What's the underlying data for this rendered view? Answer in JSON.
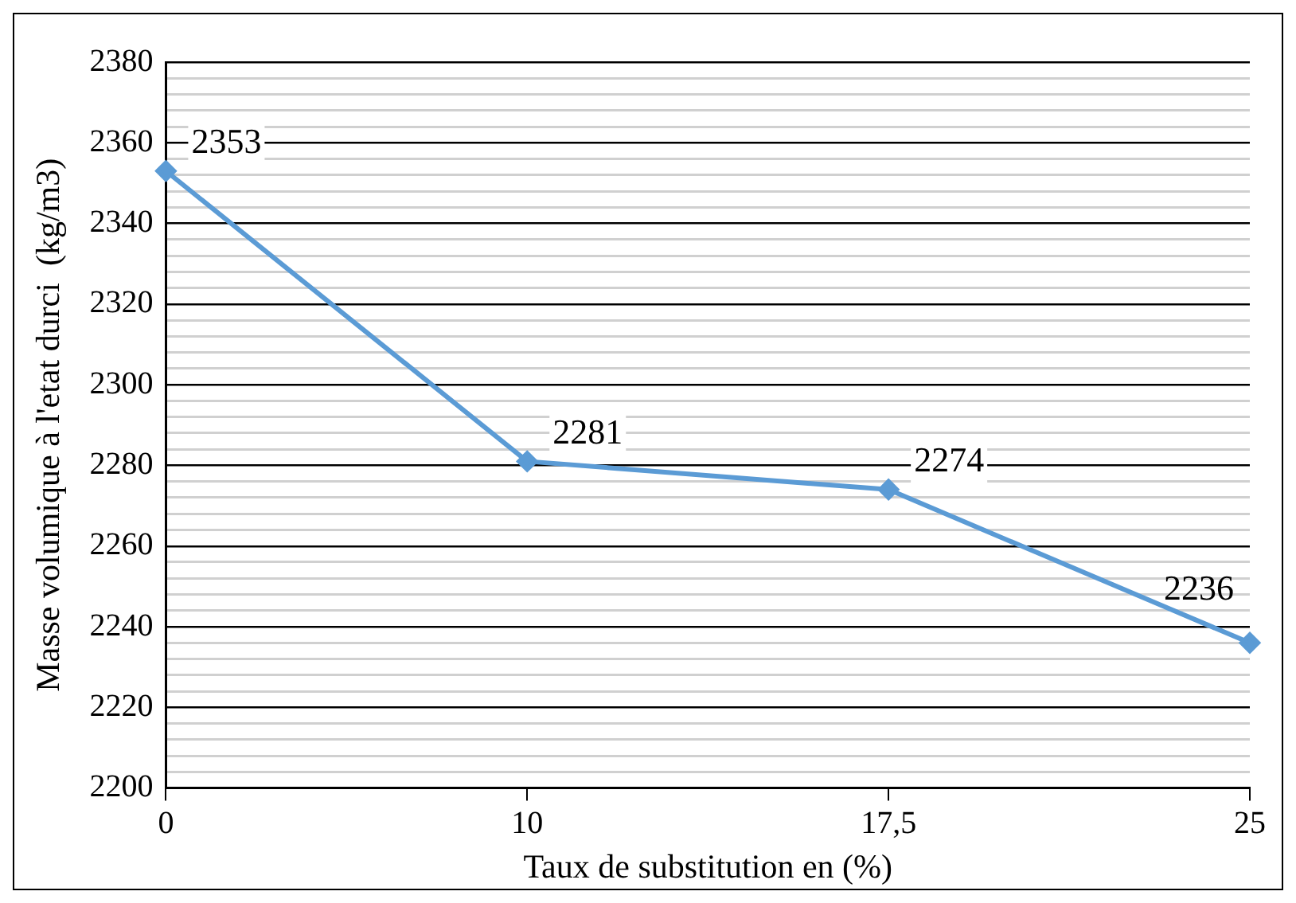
{
  "chart_data": {
    "type": "line",
    "xlabel": "Taux de substitution en (%)",
    "ylabel": "Masse volumique à l'etat durci  (kg/m3)",
    "categories": [
      "0",
      "10",
      "17,5",
      "25"
    ],
    "series": [
      {
        "color": "#5b9bd5",
        "values": [
          2353,
          2281,
          2274,
          2236
        ]
      }
    ],
    "ylim": [
      2200,
      2380
    ],
    "yticks": [
      2200,
      {
        "value": 2204,
        "label": null
      },
      {
        "value": 2208,
        "label": null
      },
      {
        "value": 2212,
        "label": null
      },
      {
        "value": 2216,
        "label": null
      },
      2220,
      {
        "value": 2224,
        "label": null
      },
      {
        "value": 2228,
        "label": null
      },
      {
        "value": 2232,
        "label": null
      },
      {
        "value": 2236,
        "label": null
      },
      2240,
      {
        "value": 2244,
        "label": null
      },
      {
        "value": 2248,
        "label": null
      },
      {
        "value": 2252,
        "label": null
      },
      {
        "value": 2256,
        "label": null
      },
      2260,
      {
        "value": 2264,
        "label": null
      },
      {
        "value": 2268,
        "label": null
      },
      {
        "value": 2272,
        "label": null
      },
      {
        "value": 2276,
        "label": null
      },
      2280,
      {
        "value": 2284,
        "label": null
      },
      {
        "value": 2288,
        "label": null
      },
      {
        "value": 2292,
        "label": null
      },
      {
        "value": 2296,
        "label": null
      },
      2300,
      {
        "value": 2304,
        "label": null
      },
      {
        "value": 2308,
        "label": null
      },
      {
        "value": 2312,
        "label": null
      },
      {
        "value": 2316,
        "label": null
      },
      2320,
      {
        "value": 2324,
        "label": null
      },
      {
        "value": 2328,
        "label": null
      },
      {
        "value": 2332,
        "label": null
      },
      {
        "value": 2336,
        "label": null
      },
      2340,
      {
        "value": 2344,
        "label": null
      },
      {
        "value": 2348,
        "label": null
      },
      {
        "value": 2352,
        "label": null
      },
      {
        "value": 2356,
        "label": null
      },
      2360,
      {
        "value": 2364,
        "label": null
      },
      {
        "value": 2368,
        "label": null
      },
      {
        "value": 2372,
        "label": null
      },
      {
        "value": 2376,
        "label": null
      },
      2380
    ],
    "grid": "y",
    "marker": "diamond",
    "line_style": "solid",
    "data_labels": true,
    "legend": false
  }
}
